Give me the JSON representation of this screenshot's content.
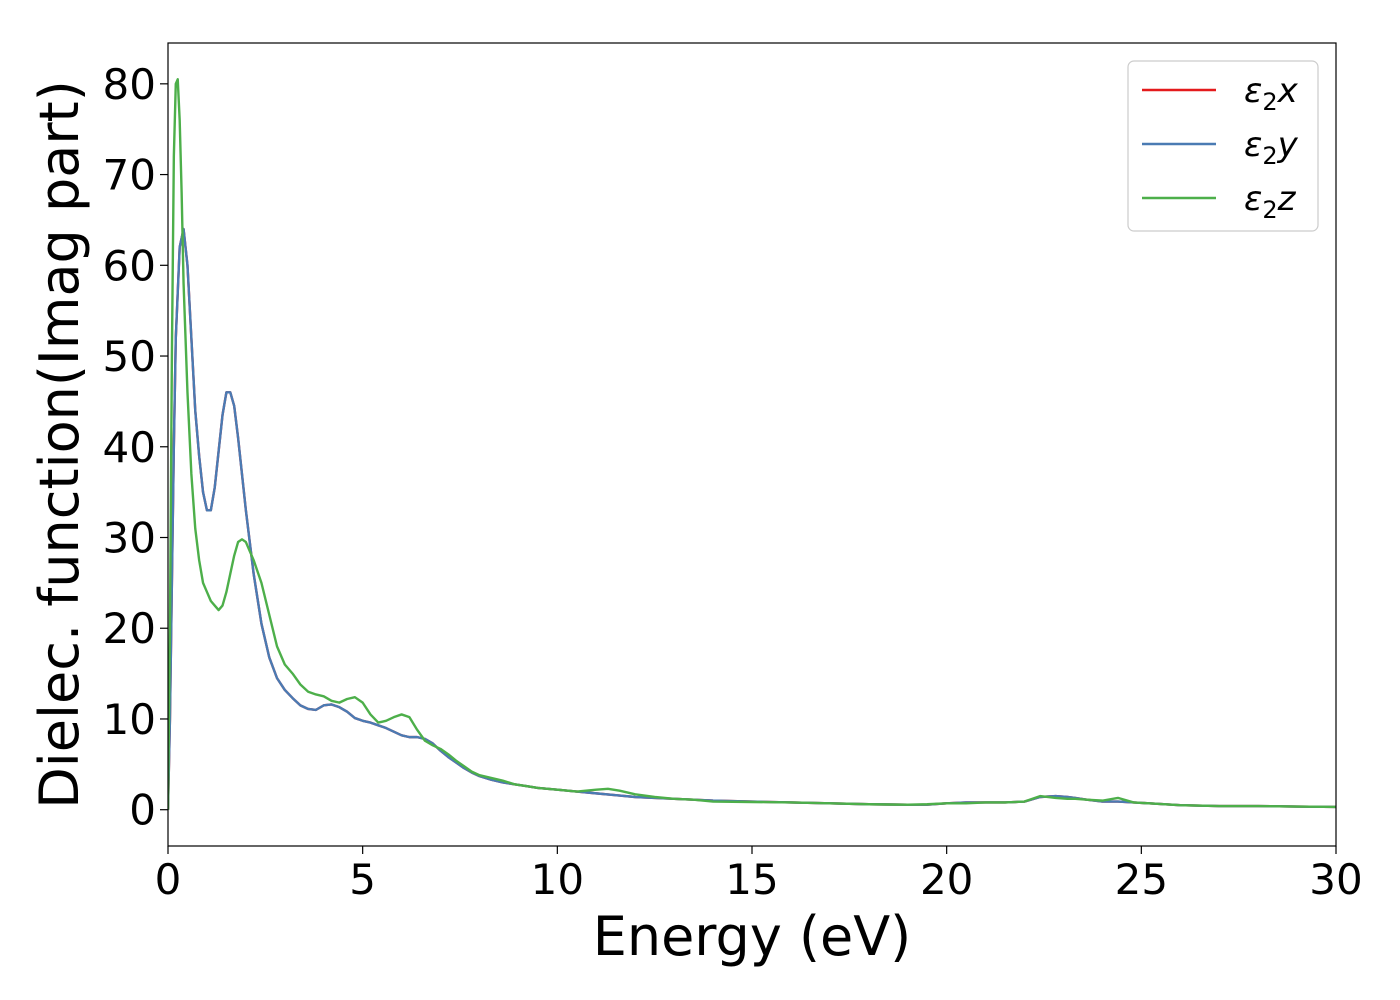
{
  "chart_data": {
    "type": "line",
    "xlabel": "Energy (eV)",
    "ylabel": "Dielec. function(Imag part)",
    "xlim": [
      0,
      30
    ],
    "ylim": [
      -4,
      84.5
    ],
    "xticks": [
      0,
      5,
      10,
      15,
      20,
      25,
      30
    ],
    "yticks": [
      0,
      10,
      20,
      30,
      40,
      50,
      60,
      70,
      80
    ],
    "grid": false,
    "legend_position": "top-right",
    "series": [
      {
        "name": "ε₂x",
        "legend_base": "ε",
        "legend_sub": "2",
        "legend_var": "x",
        "color": "#e41a1c",
        "x": [
          0,
          0.05,
          0.1,
          0.15,
          0.2,
          0.3,
          0.4,
          0.5,
          0.6,
          0.7,
          0.8,
          0.9,
          1.0,
          1.1,
          1.2,
          1.3,
          1.4,
          1.5,
          1.6,
          1.7,
          1.8,
          1.9,
          2.0,
          2.2,
          2.4,
          2.6,
          2.8,
          3.0,
          3.2,
          3.4,
          3.6,
          3.8,
          4.0,
          4.2,
          4.4,
          4.6,
          4.8,
          5.0,
          5.2,
          5.4,
          5.6,
          5.8,
          6.0,
          6.2,
          6.4,
          6.6,
          6.8,
          7.0,
          7.2,
          7.4,
          7.6,
          7.8,
          8.0,
          8.3,
          8.6,
          8.9,
          9.2,
          9.5,
          10.0,
          10.5,
          11.0,
          11.5,
          12.0,
          12.5,
          13.0,
          13.5,
          14.0,
          15.0,
          16.0,
          17.0,
          18.0,
          19.0,
          19.5,
          20.0,
          20.5,
          21.0,
          21.5,
          22.0,
          22.4,
          22.8,
          23.1,
          23.3,
          23.6,
          24.0,
          24.4,
          24.8,
          25.2,
          26.0,
          27.0,
          28.0,
          29.0,
          30.0
        ],
        "y": [
          0,
          10,
          25,
          40,
          52,
          62,
          64,
          60,
          52,
          44,
          39,
          35,
          33,
          33,
          35.5,
          39.5,
          43.5,
          46,
          46,
          44.5,
          41,
          37,
          33,
          26,
          20.5,
          16.8,
          14.5,
          13.2,
          12.3,
          11.5,
          11.1,
          11,
          11.5,
          11.6,
          11.3,
          10.8,
          10.1,
          9.8,
          9.6,
          9.3,
          9,
          8.6,
          8.2,
          8,
          8,
          7.8,
          7.3,
          6.5,
          5.8,
          5.2,
          4.6,
          4.1,
          3.7,
          3.3,
          3,
          2.8,
          2.6,
          2.4,
          2.2,
          2,
          1.8,
          1.6,
          1.4,
          1.3,
          1.2,
          1.1,
          1.0,
          0.9,
          0.8,
          0.7,
          0.6,
          0.55,
          0.55,
          0.7,
          0.8,
          0.8,
          0.8,
          0.9,
          1.4,
          1.5,
          1.4,
          1.3,
          1.1,
          0.9,
          0.9,
          0.8,
          0.7,
          0.5,
          0.4,
          0.4,
          0.35,
          0.3
        ]
      },
      {
        "name": "ε₂y",
        "legend_base": "ε",
        "legend_sub": "2",
        "legend_var": "y",
        "color": "#4a7bb3",
        "x": [
          0,
          0.05,
          0.1,
          0.15,
          0.2,
          0.3,
          0.4,
          0.5,
          0.6,
          0.7,
          0.8,
          0.9,
          1.0,
          1.1,
          1.2,
          1.3,
          1.4,
          1.5,
          1.6,
          1.7,
          1.8,
          1.9,
          2.0,
          2.2,
          2.4,
          2.6,
          2.8,
          3.0,
          3.2,
          3.4,
          3.6,
          3.8,
          4.0,
          4.2,
          4.4,
          4.6,
          4.8,
          5.0,
          5.2,
          5.4,
          5.6,
          5.8,
          6.0,
          6.2,
          6.4,
          6.6,
          6.8,
          7.0,
          7.2,
          7.4,
          7.6,
          7.8,
          8.0,
          8.3,
          8.6,
          8.9,
          9.2,
          9.5,
          10.0,
          10.5,
          11.0,
          11.5,
          12.0,
          12.5,
          13.0,
          13.5,
          14.0,
          15.0,
          16.0,
          17.0,
          18.0,
          19.0,
          19.5,
          20.0,
          20.5,
          21.0,
          21.5,
          22.0,
          22.4,
          22.8,
          23.1,
          23.3,
          23.6,
          24.0,
          24.4,
          24.8,
          25.2,
          26.0,
          27.0,
          28.0,
          29.0,
          30.0
        ],
        "y": [
          0,
          10,
          25,
          40,
          52,
          62,
          64,
          60,
          52,
          44,
          39,
          35,
          33,
          33,
          35.5,
          39.5,
          43.5,
          46,
          46,
          44.5,
          41,
          37,
          33,
          26,
          20.5,
          16.8,
          14.5,
          13.2,
          12.3,
          11.5,
          11.1,
          11,
          11.5,
          11.6,
          11.3,
          10.8,
          10.1,
          9.8,
          9.6,
          9.3,
          9,
          8.6,
          8.2,
          8,
          8,
          7.8,
          7.3,
          6.5,
          5.8,
          5.2,
          4.6,
          4.1,
          3.7,
          3.3,
          3,
          2.8,
          2.6,
          2.4,
          2.2,
          2,
          1.8,
          1.6,
          1.4,
          1.3,
          1.2,
          1.1,
          1.0,
          0.9,
          0.8,
          0.7,
          0.6,
          0.55,
          0.55,
          0.7,
          0.8,
          0.8,
          0.8,
          0.9,
          1.4,
          1.5,
          1.4,
          1.3,
          1.1,
          0.9,
          0.9,
          0.8,
          0.7,
          0.5,
          0.4,
          0.4,
          0.35,
          0.3
        ]
      },
      {
        "name": "ε₂z",
        "legend_base": "ε",
        "legend_sub": "2",
        "legend_var": "z",
        "color": "#4daf4a",
        "x": [
          0,
          0.05,
          0.1,
          0.15,
          0.2,
          0.25,
          0.3,
          0.35,
          0.4,
          0.5,
          0.6,
          0.7,
          0.8,
          0.9,
          1.0,
          1.1,
          1.2,
          1.3,
          1.4,
          1.5,
          1.6,
          1.7,
          1.8,
          1.9,
          2.0,
          2.1,
          2.2,
          2.4,
          2.6,
          2.8,
          3.0,
          3.2,
          3.4,
          3.6,
          3.8,
          4.0,
          4.2,
          4.4,
          4.6,
          4.8,
          5.0,
          5.2,
          5.4,
          5.6,
          5.8,
          6.0,
          6.2,
          6.4,
          6.6,
          6.8,
          7.0,
          7.2,
          7.4,
          7.6,
          7.8,
          8.0,
          8.3,
          8.6,
          8.9,
          9.2,
          9.5,
          10.0,
          10.5,
          11.0,
          11.3,
          11.6,
          12.0,
          12.5,
          13.0,
          13.5,
          14.0,
          15.0,
          16.0,
          17.0,
          18.0,
          19.0,
          19.5,
          20.0,
          20.5,
          21.0,
          21.5,
          22.0,
          22.4,
          22.8,
          23.1,
          23.3,
          23.6,
          24.0,
          24.4,
          24.8,
          25.2,
          26.0,
          27.0,
          28.0,
          29.0,
          30.0
        ],
        "y": [
          0,
          20,
          50,
          72,
          80,
          80.5,
          76,
          68,
          58,
          46,
          37,
          31,
          27.5,
          25,
          24,
          23,
          22.5,
          22,
          22.5,
          24,
          26,
          28,
          29.5,
          29.8,
          29.5,
          28.5,
          27.5,
          25,
          21.5,
          18,
          16,
          15,
          13.8,
          13,
          12.7,
          12.5,
          12,
          11.8,
          12.2,
          12.4,
          11.8,
          10.5,
          9.6,
          9.8,
          10.2,
          10.5,
          10.2,
          8.8,
          7.6,
          7.1,
          6.7,
          6.1,
          5.4,
          4.8,
          4.2,
          3.8,
          3.5,
          3.2,
          2.8,
          2.6,
          2.4,
          2.2,
          2,
          2.2,
          2.3,
          2.1,
          1.7,
          1.4,
          1.2,
          1.1,
          0.9,
          0.85,
          0.8,
          0.7,
          0.6,
          0.55,
          0.6,
          0.7,
          0.7,
          0.8,
          0.8,
          0.9,
          1.5,
          1.3,
          1.2,
          1.2,
          1.1,
          1.0,
          1.3,
          0.8,
          0.7,
          0.5,
          0.4,
          0.4,
          0.35,
          0.3
        ]
      }
    ]
  }
}
